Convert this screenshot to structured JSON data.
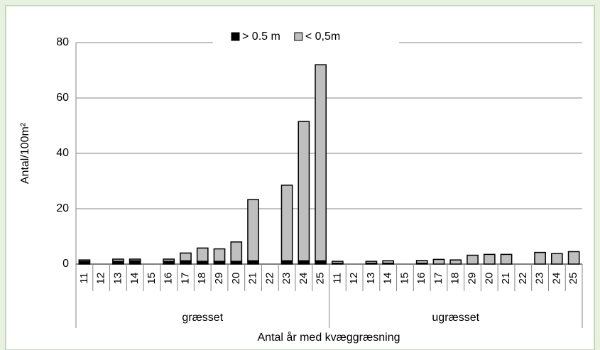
{
  "chart_data": {
    "type": "stacked_bar",
    "y_label": "Antal/100m²",
    "x_label": "Antal år med kvæggræsning",
    "groups": [
      "græsset",
      "ugræsset"
    ],
    "categories": [
      "11",
      "12",
      "13",
      "14",
      "15",
      "16",
      "17",
      "18",
      "29",
      "20",
      "21",
      "22",
      "23",
      "24",
      "25",
      "11",
      "12",
      "13",
      "14",
      "15",
      "16",
      "17",
      "18",
      "29",
      "20",
      "21",
      "22",
      "23",
      "24",
      "25"
    ],
    "series": [
      {
        "name": "> 0.5 m",
        "color": "#000000",
        "values": [
          1,
          0,
          1,
          1.2,
          0,
          1,
          1.2,
          1,
          1,
          1,
          1.2,
          0,
          1.2,
          1.2,
          1.2,
          0.3,
          0,
          0.3,
          0.3,
          0,
          0.3,
          0,
          0,
          0,
          0,
          0,
          0,
          0,
          0,
          0
        ]
      },
      {
        "name": "< 0,5m",
        "color": "#bfbfbf",
        "values": [
          0.5,
          0,
          0.8,
          0.6,
          0,
          0.8,
          2.8,
          4.8,
          4.5,
          7,
          22.1,
          0,
          27.3,
          50.3,
          70.8,
          0.7,
          0,
          0.7,
          0.9,
          0,
          1,
          1.7,
          1.5,
          3.2,
          3.5,
          3.5,
          0,
          4.2,
          3.8,
          4.5
        ]
      }
    ],
    "ylim": [
      0,
      80
    ],
    "yticks": [
      0,
      20,
      40,
      60,
      80
    ],
    "grid": true,
    "legend": "top"
  }
}
